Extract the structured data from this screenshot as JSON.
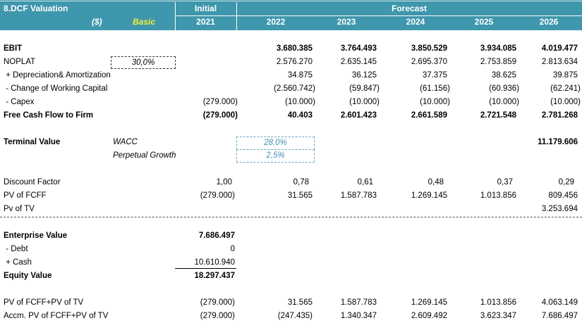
{
  "header": {
    "sheet_title": "8.DCF Valuation",
    "currency": "($)",
    "scenario": "Basic",
    "initial_label": "Initial",
    "forecast_label": "Forecast",
    "years": [
      "2021",
      "2022",
      "2023",
      "2024",
      "2025",
      "2026"
    ]
  },
  "rows": {
    "ebit": {
      "label": "EBIT",
      "values": [
        "",
        "3.680.385",
        "3.764.493",
        "3.850.529",
        "3.934.085",
        "4.019.477"
      ]
    },
    "noplat": {
      "label": "NOPLAT",
      "tax_rate": "30,0%",
      "values": [
        "",
        "2.576.270",
        "2.635.145",
        "2.695.370",
        "2.753.859",
        "2.813.634"
      ]
    },
    "depreciation": {
      "label": " + Depreciation& Amortization",
      "values": [
        "",
        "34.875",
        "36.125",
        "37.375",
        "38.625",
        "39.875"
      ]
    },
    "working_capital": {
      "label": " - Change of Working Capital",
      "values": [
        "",
        "(2.560.742)",
        "(59.847)",
        "(61.156)",
        "(60.936)",
        "(62.241)"
      ]
    },
    "capex": {
      "label": " - Capex",
      "values": [
        "(279.000)",
        "(10.000)",
        "(10.000)",
        "(10.000)",
        "(10.000)",
        "(10.000)"
      ]
    },
    "fcff": {
      "label": "Free Cash Flow to Firm",
      "values": [
        "(279.000)",
        "40.403",
        "2.601.423",
        "2.661.589",
        "2.721.548",
        "2.781.268"
      ]
    },
    "terminal_value": {
      "label": "Terminal Value",
      "wacc_label": "WACC",
      "wacc_value": "28,0%",
      "growth_label": "Perpetual Growth",
      "growth_value": "2,5%",
      "value_2026": "11.179.606"
    },
    "discount_factor": {
      "label": "Discount Factor",
      "values": [
        "1,00",
        "0,78",
        "0,61",
        "0,48",
        "0,37",
        "0,29"
      ]
    },
    "pv_fcff": {
      "label": "PV of FCFF",
      "values": [
        "(279.000)",
        "31.565",
        "1.587.783",
        "1.269.145",
        "1.013.856",
        "809.456"
      ]
    },
    "pv_tv": {
      "label": "Pv of TV",
      "values": [
        "",
        "",
        "",
        "",
        "",
        "3.253.694"
      ]
    },
    "enterprise_value": {
      "label": "Enterprise Value",
      "value": "7.686.497"
    },
    "debt": {
      "label": " - Debt",
      "value": "0"
    },
    "cash": {
      "label": " + Cash",
      "value": "10.610.940"
    },
    "equity_value": {
      "label": "Equity Value",
      "value": "18.297.437"
    },
    "pv_sum": {
      "label": "PV of FCFF+PV of TV",
      "values": [
        "(279.000)",
        "31.565",
        "1.587.783",
        "1.269.145",
        "1.013.856",
        "4.063.149"
      ]
    },
    "pv_accum": {
      "label": "Accm. PV of FCFF+PV of TV",
      "values": [
        "(279.000)",
        "(247.435)",
        "1.340.347",
        "2.609.492",
        "3.623.347",
        "7.686.497"
      ]
    }
  }
}
